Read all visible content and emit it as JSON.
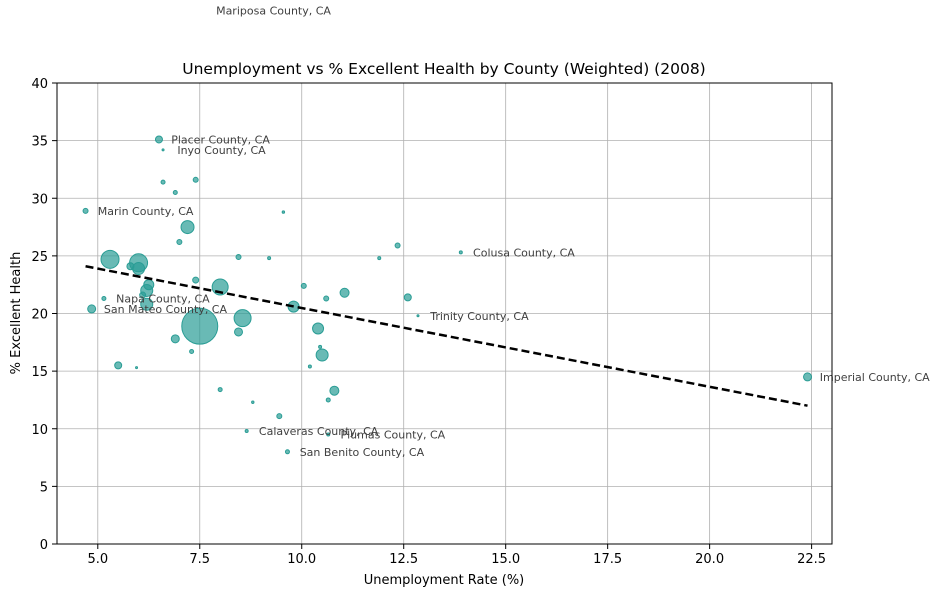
{
  "chart_data": {
    "type": "scatter",
    "title": "Unemployment vs % Excellent Health by County (Weighted) (2008)",
    "xlabel": "Unemployment Rate (%)",
    "ylabel": "% Excellent Health",
    "xlim": [
      4.0,
      23.0
    ],
    "ylim": [
      0,
      40
    ],
    "xticks": [
      5.0,
      7.5,
      10.0,
      12.5,
      15.0,
      17.5,
      20.0,
      22.5
    ],
    "xtick_labels": [
      "5.0",
      "7.5",
      "10.0",
      "12.5",
      "15.0",
      "17.5",
      "20.0",
      "22.5"
    ],
    "yticks": [
      0,
      5,
      10,
      15,
      20,
      25,
      30,
      35,
      40
    ],
    "ytick_labels": [
      "0",
      "5",
      "10",
      "15",
      "20",
      "25",
      "30",
      "35",
      "40"
    ],
    "grid": true,
    "point_color": "#2a9d95",
    "trend_color": "#000000",
    "trendline": {
      "x": [
        4.7,
        22.4
      ],
      "y": [
        24.1,
        12.0
      ]
    },
    "points": [
      {
        "x": 7.5,
        "y": 18.9,
        "size": 18
      },
      {
        "x": 5.3,
        "y": 24.7,
        "size": 9
      },
      {
        "x": 6.0,
        "y": 24.4,
        "size": 9
      },
      {
        "x": 8.0,
        "y": 22.3,
        "size": 8
      },
      {
        "x": 8.55,
        "y": 19.6,
        "size": 8.5
      },
      {
        "x": 6.0,
        "y": 23.9,
        "size": 6
      },
      {
        "x": 7.2,
        "y": 27.5,
        "size": 6.5
      },
      {
        "x": 6.2,
        "y": 22.0,
        "size": 6
      },
      {
        "x": 6.25,
        "y": 22.5,
        "size": 5
      },
      {
        "x": 6.2,
        "y": 20.8,
        "size": 6
      },
      {
        "x": 9.8,
        "y": 20.6,
        "size": 5.5
      },
      {
        "x": 10.4,
        "y": 18.7,
        "size": 5.5
      },
      {
        "x": 10.5,
        "y": 16.4,
        "size": 6
      },
      {
        "x": 11.05,
        "y": 21.8,
        "size": 4.5
      },
      {
        "x": 5.8,
        "y": 24.1,
        "size": 3.5
      },
      {
        "x": 6.1,
        "y": 21.6,
        "size": 3
      },
      {
        "x": 6.9,
        "y": 17.8,
        "size": 4
      },
      {
        "x": 8.45,
        "y": 18.4,
        "size": 4
      },
      {
        "x": 10.8,
        "y": 13.3,
        "size": 4.5
      },
      {
        "x": 22.4,
        "y": 14.5,
        "size": 4
      },
      {
        "x": 6.5,
        "y": 35.1,
        "size": 3.5
      },
      {
        "x": 4.85,
        "y": 20.4,
        "size": 4
      },
      {
        "x": 5.5,
        "y": 15.5,
        "size": 3.5
      },
      {
        "x": 12.6,
        "y": 21.4,
        "size": 3.5
      },
      {
        "x": 4.7,
        "y": 28.9,
        "size": 2.5
      },
      {
        "x": 7.4,
        "y": 31.6,
        "size": 2.5
      },
      {
        "x": 7.4,
        "y": 22.9,
        "size": 3
      },
      {
        "x": 7.0,
        "y": 26.2,
        "size": 2.5
      },
      {
        "x": 8.45,
        "y": 24.9,
        "size": 2.5
      },
      {
        "x": 10.05,
        "y": 22.4,
        "size": 2.5
      },
      {
        "x": 10.6,
        "y": 21.3,
        "size": 2.5
      },
      {
        "x": 9.45,
        "y": 11.1,
        "size": 2.5
      },
      {
        "x": 12.35,
        "y": 25.9,
        "size": 2.5
      },
      {
        "x": 5.15,
        "y": 21.3,
        "size": 2
      },
      {
        "x": 6.6,
        "y": 31.4,
        "size": 2
      },
      {
        "x": 6.9,
        "y": 30.5,
        "size": 2
      },
      {
        "x": 7.3,
        "y": 16.7,
        "size": 2
      },
      {
        "x": 8.0,
        "y": 13.4,
        "size": 2
      },
      {
        "x": 9.2,
        "y": 24.8,
        "size": 1.5
      },
      {
        "x": 9.65,
        "y": 8.0,
        "size": 2
      },
      {
        "x": 10.65,
        "y": 12.5,
        "size": 2
      },
      {
        "x": 11.9,
        "y": 24.8,
        "size": 1.5
      },
      {
        "x": 13.9,
        "y": 25.3,
        "size": 1.5
      },
      {
        "x": 8.65,
        "y": 9.8,
        "size": 1.5
      },
      {
        "x": 10.65,
        "y": 9.5,
        "size": 1.5
      },
      {
        "x": 10.2,
        "y": 15.4,
        "size": 1.5
      },
      {
        "x": 10.45,
        "y": 17.1,
        "size": 1.5
      },
      {
        "x": 9.55,
        "y": 28.8,
        "size": 1.2
      },
      {
        "x": 8.8,
        "y": 12.3,
        "size": 1.2
      },
      {
        "x": 6.6,
        "y": 34.2,
        "size": 1
      },
      {
        "x": 5.95,
        "y": 15.3,
        "size": 1
      },
      {
        "x": 12.85,
        "y": 19.8,
        "size": 1
      }
    ],
    "annotations": [
      {
        "text": "Mariposa County, CA",
        "x": 7.9,
        "y": 46.3
      },
      {
        "text": "Placer County, CA",
        "x": 6.8,
        "y": 35.1
      },
      {
        "text": "Inyo County, CA",
        "x": 6.95,
        "y": 34.2
      },
      {
        "text": "Marin County, CA",
        "x": 5.0,
        "y": 28.9
      },
      {
        "text": "Colusa County, CA",
        "x": 14.2,
        "y": 25.3
      },
      {
        "text": "Napa County, CA",
        "x": 5.45,
        "y": 21.3
      },
      {
        "text": "San Mateo County, CA",
        "x": 5.15,
        "y": 20.4
      },
      {
        "text": "Trinity County, CA",
        "x": 13.15,
        "y": 19.8
      },
      {
        "text": "Imperial County, CA",
        "x": 22.7,
        "y": 14.5
      },
      {
        "text": "Calaveras County, CA",
        "x": 8.95,
        "y": 9.8
      },
      {
        "text": "Plumas County, CA",
        "x": 10.95,
        "y": 9.5
      },
      {
        "text": "San Benito County, CA",
        "x": 9.95,
        "y": 8.0
      }
    ]
  }
}
